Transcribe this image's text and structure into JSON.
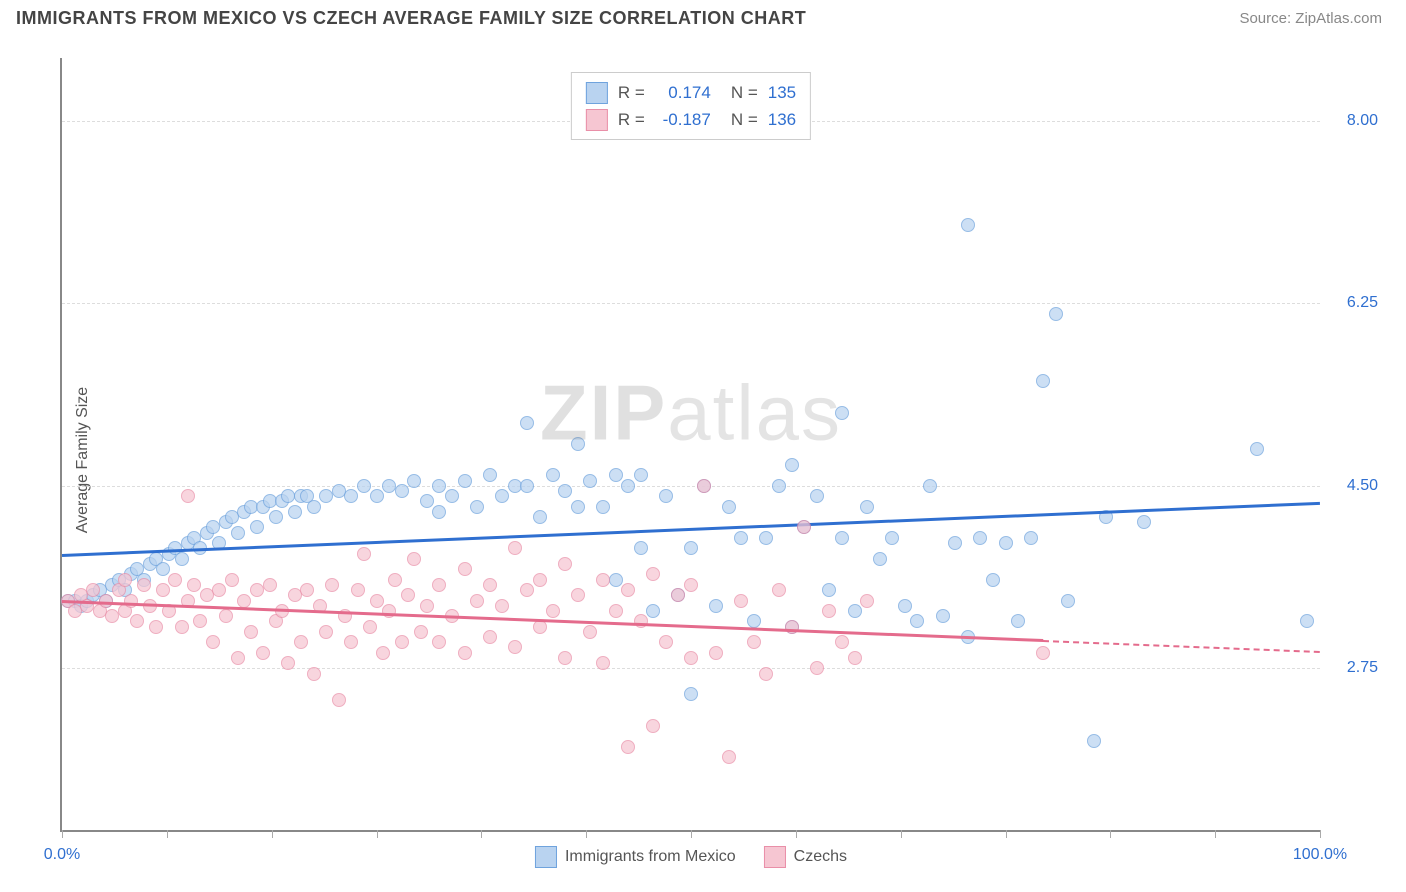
{
  "title": "IMMIGRANTS FROM MEXICO VS CZECH AVERAGE FAMILY SIZE CORRELATION CHART",
  "source": "Source: ZipAtlas.com",
  "watermark": "ZIPatlas",
  "chart": {
    "type": "scatter",
    "ylabel": "Average Family Size",
    "xlim": [
      0,
      100
    ],
    "ylim": [
      1.2,
      8.6
    ],
    "yticks": [
      2.75,
      4.5,
      6.25,
      8.0
    ],
    "xticks_minor": [
      0,
      8.33,
      16.67,
      25,
      33.33,
      41.67,
      50,
      58.33,
      66.67,
      75,
      83.33,
      91.67,
      100
    ],
    "xtick_labels": [
      {
        "x": 0,
        "label": "0.0%",
        "color": "#2f6fd0"
      },
      {
        "x": 100,
        "label": "100.0%",
        "color": "#2f6fd0"
      }
    ],
    "ytick_color": "#2f6fd0",
    "background_color": "#ffffff",
    "grid_color": "#dddddd",
    "series": [
      {
        "name": "Immigrants from Mexico",
        "color_fill": "#b9d3f0",
        "color_stroke": "#6fa3dd",
        "marker_size": 14,
        "opacity": 0.72,
        "R": "0.174",
        "N": "135",
        "regression": {
          "x0": 0,
          "y0": 3.85,
          "x1": 100,
          "y1": 4.35,
          "color": "#2f6fd0",
          "width": 2.5,
          "dash_from_x": null
        },
        "points": [
          [
            0.5,
            3.4
          ],
          [
            1,
            3.4
          ],
          [
            1.5,
            3.35
          ],
          [
            2,
            3.4
          ],
          [
            2.5,
            3.45
          ],
          [
            3,
            3.5
          ],
          [
            3.5,
            3.4
          ],
          [
            4,
            3.55
          ],
          [
            4.5,
            3.6
          ],
          [
            5,
            3.5
          ],
          [
            5.5,
            3.65
          ],
          [
            6,
            3.7
          ],
          [
            6.5,
            3.6
          ],
          [
            7,
            3.75
          ],
          [
            7.5,
            3.8
          ],
          [
            8,
            3.7
          ],
          [
            8.5,
            3.85
          ],
          [
            9,
            3.9
          ],
          [
            9.5,
            3.8
          ],
          [
            10,
            3.95
          ],
          [
            10.5,
            4.0
          ],
          [
            11,
            3.9
          ],
          [
            11.5,
            4.05
          ],
          [
            12,
            4.1
          ],
          [
            12.5,
            3.95
          ],
          [
            13,
            4.15
          ],
          [
            13.5,
            4.2
          ],
          [
            14,
            4.05
          ],
          [
            14.5,
            4.25
          ],
          [
            15,
            4.3
          ],
          [
            15.5,
            4.1
          ],
          [
            16,
            4.3
          ],
          [
            16.5,
            4.35
          ],
          [
            17,
            4.2
          ],
          [
            17.5,
            4.35
          ],
          [
            18,
            4.4
          ],
          [
            18.5,
            4.25
          ],
          [
            19,
            4.4
          ],
          [
            19.5,
            4.4
          ],
          [
            20,
            4.3
          ],
          [
            21,
            4.4
          ],
          [
            22,
            4.45
          ],
          [
            23,
            4.4
          ],
          [
            24,
            4.5
          ],
          [
            25,
            4.4
          ],
          [
            26,
            4.5
          ],
          [
            27,
            4.45
          ],
          [
            28,
            4.55
          ],
          [
            29,
            4.35
          ],
          [
            30,
            4.5
          ],
          [
            30,
            4.25
          ],
          [
            31,
            4.4
          ],
          [
            32,
            4.55
          ],
          [
            33,
            4.3
          ],
          [
            34,
            4.6
          ],
          [
            35,
            4.4
          ],
          [
            36,
            4.5
          ],
          [
            37,
            4.5
          ],
          [
            37,
            5.1
          ],
          [
            38,
            4.2
          ],
          [
            39,
            4.6
          ],
          [
            40,
            4.45
          ],
          [
            41,
            4.9
          ],
          [
            41,
            4.3
          ],
          [
            42,
            4.55
          ],
          [
            43,
            4.3
          ],
          [
            44,
            3.6
          ],
          [
            44,
            4.6
          ],
          [
            45,
            4.5
          ],
          [
            46,
            3.9
          ],
          [
            46,
            4.6
          ],
          [
            47,
            3.3
          ],
          [
            48,
            4.4
          ],
          [
            49,
            3.45
          ],
          [
            50,
            3.9
          ],
          [
            50,
            2.5
          ],
          [
            51,
            4.5
          ],
          [
            52,
            3.35
          ],
          [
            53,
            4.3
          ],
          [
            54,
            4.0
          ],
          [
            55,
            3.2
          ],
          [
            56,
            4.0
          ],
          [
            57,
            4.5
          ],
          [
            58,
            4.7
          ],
          [
            58,
            3.15
          ],
          [
            59,
            4.1
          ],
          [
            60,
            4.4
          ],
          [
            61,
            3.5
          ],
          [
            62,
            4.0
          ],
          [
            62,
            5.2
          ],
          [
            63,
            3.3
          ],
          [
            64,
            4.3
          ],
          [
            65,
            3.8
          ],
          [
            66,
            4.0
          ],
          [
            67,
            3.35
          ],
          [
            68,
            3.2
          ],
          [
            69,
            4.5
          ],
          [
            70,
            3.25
          ],
          [
            71,
            3.95
          ],
          [
            72,
            3.05
          ],
          [
            72,
            7.0
          ],
          [
            73,
            4.0
          ],
          [
            74,
            3.6
          ],
          [
            75,
            3.95
          ],
          [
            76,
            3.2
          ],
          [
            77,
            4.0
          ],
          [
            78,
            5.5
          ],
          [
            79,
            6.15
          ],
          [
            80,
            3.4
          ],
          [
            82,
            2.05
          ],
          [
            83,
            4.2
          ],
          [
            86,
            4.15
          ],
          [
            95,
            4.85
          ],
          [
            99,
            3.2
          ]
        ]
      },
      {
        "name": "Czechs",
        "color_fill": "#f6c6d2",
        "color_stroke": "#e98fa8",
        "marker_size": 14,
        "opacity": 0.72,
        "R": "-0.187",
        "N": "136",
        "regression": {
          "x0": 0,
          "y0": 3.4,
          "x1": 100,
          "y1": 2.92,
          "color": "#e46b8c",
          "width": 2.5,
          "dash_from_x": 78
        },
        "points": [
          [
            0.5,
            3.4
          ],
          [
            1,
            3.3
          ],
          [
            1.5,
            3.45
          ],
          [
            2,
            3.35
          ],
          [
            2.5,
            3.5
          ],
          [
            3,
            3.3
          ],
          [
            3.5,
            3.4
          ],
          [
            4,
            3.25
          ],
          [
            4.5,
            3.5
          ],
          [
            5,
            3.3
          ],
          [
            5,
            3.6
          ],
          [
            5.5,
            3.4
          ],
          [
            6,
            3.2
          ],
          [
            6.5,
            3.55
          ],
          [
            7,
            3.35
          ],
          [
            7.5,
            3.15
          ],
          [
            8,
            3.5
          ],
          [
            8.5,
            3.3
          ],
          [
            9,
            3.6
          ],
          [
            9.5,
            3.15
          ],
          [
            10,
            3.4
          ],
          [
            10,
            4.4
          ],
          [
            10.5,
            3.55
          ],
          [
            11,
            3.2
          ],
          [
            11.5,
            3.45
          ],
          [
            12,
            3.0
          ],
          [
            12.5,
            3.5
          ],
          [
            13,
            3.25
          ],
          [
            13.5,
            3.6
          ],
          [
            14,
            2.85
          ],
          [
            14.5,
            3.4
          ],
          [
            15,
            3.1
          ],
          [
            15.5,
            3.5
          ],
          [
            16,
            2.9
          ],
          [
            16.5,
            3.55
          ],
          [
            17,
            3.2
          ],
          [
            17.5,
            3.3
          ],
          [
            18,
            2.8
          ],
          [
            18.5,
            3.45
          ],
          [
            19,
            3.0
          ],
          [
            19.5,
            3.5
          ],
          [
            20,
            2.7
          ],
          [
            20.5,
            3.35
          ],
          [
            21,
            3.1
          ],
          [
            21.5,
            3.55
          ],
          [
            22,
            2.45
          ],
          [
            22.5,
            3.25
          ],
          [
            23,
            3.0
          ],
          [
            23.5,
            3.5
          ],
          [
            24,
            3.85
          ],
          [
            24.5,
            3.15
          ],
          [
            25,
            3.4
          ],
          [
            25.5,
            2.9
          ],
          [
            26,
            3.3
          ],
          [
            26.5,
            3.6
          ],
          [
            27,
            3.0
          ],
          [
            27.5,
            3.45
          ],
          [
            28,
            3.8
          ],
          [
            28.5,
            3.1
          ],
          [
            29,
            3.35
          ],
          [
            30,
            3.55
          ],
          [
            30,
            3.0
          ],
          [
            31,
            3.25
          ],
          [
            32,
            3.7
          ],
          [
            32,
            2.9
          ],
          [
            33,
            3.4
          ],
          [
            34,
            3.55
          ],
          [
            34,
            3.05
          ],
          [
            35,
            3.35
          ],
          [
            36,
            3.9
          ],
          [
            36,
            2.95
          ],
          [
            37,
            3.5
          ],
          [
            38,
            3.15
          ],
          [
            38,
            3.6
          ],
          [
            39,
            3.3
          ],
          [
            40,
            3.75
          ],
          [
            40,
            2.85
          ],
          [
            41,
            3.45
          ],
          [
            42,
            3.1
          ],
          [
            43,
            3.6
          ],
          [
            43,
            2.8
          ],
          [
            44,
            3.3
          ],
          [
            45,
            3.5
          ],
          [
            45,
            2.0
          ],
          [
            46,
            3.2
          ],
          [
            47,
            3.65
          ],
          [
            47,
            2.2
          ],
          [
            48,
            3.0
          ],
          [
            49,
            3.45
          ],
          [
            50,
            2.85
          ],
          [
            50,
            3.55
          ],
          [
            51,
            4.5
          ],
          [
            52,
            2.9
          ],
          [
            53,
            1.9
          ],
          [
            54,
            3.4
          ],
          [
            55,
            3.0
          ],
          [
            56,
            2.7
          ],
          [
            57,
            3.5
          ],
          [
            58,
            3.15
          ],
          [
            59,
            4.1
          ],
          [
            60,
            2.75
          ],
          [
            61,
            3.3
          ],
          [
            62,
            3.0
          ],
          [
            63,
            2.85
          ],
          [
            64,
            3.4
          ],
          [
            78,
            2.9
          ]
        ]
      }
    ]
  },
  "stats_labels": {
    "R_prefix": "R =",
    "N_prefix": "N ="
  },
  "bottom_legend": [
    {
      "label": "Immigrants from Mexico",
      "fill": "#b9d3f0",
      "stroke": "#6fa3dd"
    },
    {
      "label": "Czechs",
      "fill": "#f6c6d2",
      "stroke": "#e98fa8"
    }
  ]
}
